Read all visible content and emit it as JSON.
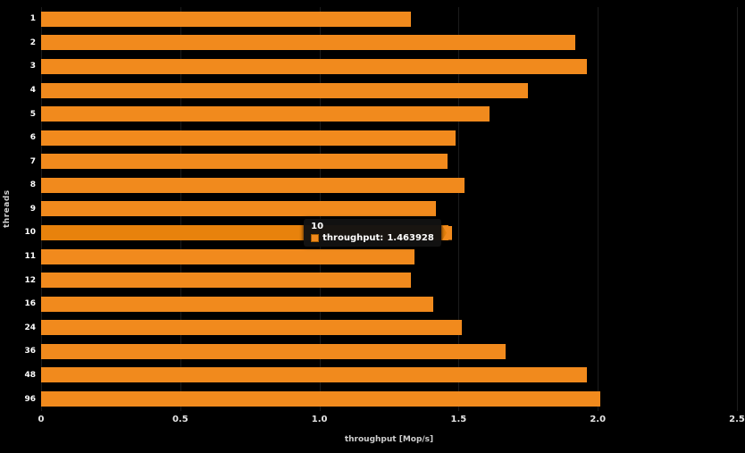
{
  "chart_data": {
    "type": "bar",
    "orientation": "horizontal",
    "title": "",
    "xlabel": "throughput [Mop/s]",
    "ylabel": "threads",
    "xlim": [
      0,
      2.5
    ],
    "x_ticks": [
      "0",
      "0.5",
      "1.0",
      "1.5",
      "2.0",
      "2.5"
    ],
    "grid": "subtle-vertical",
    "legend": "none",
    "categories": [
      "1",
      "2",
      "3",
      "4",
      "5",
      "6",
      "7",
      "8",
      "9",
      "10",
      "11",
      "12",
      "16",
      "24",
      "36",
      "48",
      "96"
    ],
    "values": [
      1.33,
      1.92,
      1.96,
      1.75,
      1.61,
      1.49,
      1.46,
      1.52,
      1.42,
      1.463928,
      1.34,
      1.33,
      1.41,
      1.51,
      1.67,
      1.96,
      2.01
    ],
    "bar_color": "#F18A1D",
    "highlight_color": "#E8820C",
    "highlighted_category": "10",
    "background_color": "#000000"
  },
  "tooltip": {
    "title": "10",
    "label": "throughput:",
    "value": "1.463928"
  }
}
